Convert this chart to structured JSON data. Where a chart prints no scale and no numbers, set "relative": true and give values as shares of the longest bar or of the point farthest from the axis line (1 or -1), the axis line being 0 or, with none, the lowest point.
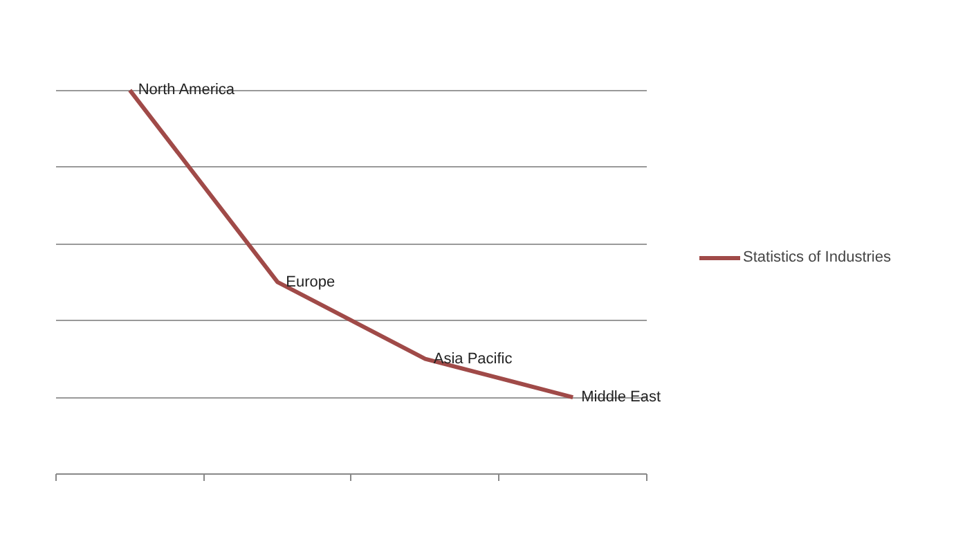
{
  "chart_data": {
    "type": "line",
    "relative": true,
    "categories": [
      "North America",
      "Europe",
      "Asia Pacific",
      "Middle East"
    ],
    "series": [
      {
        "name": "Statistics of Industries",
        "color": "#a04a48",
        "values": [
          1,
          0.5,
          0.3,
          0.2
        ]
      }
    ],
    "grid": "y",
    "legend": "right",
    "tick_labels": false,
    "marker": "none"
  }
}
